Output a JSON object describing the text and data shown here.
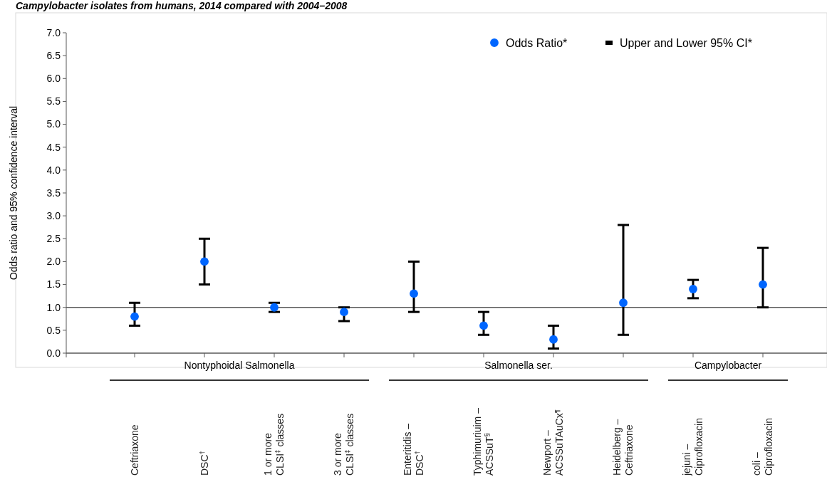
{
  "chart_data": {
    "type": "scatter",
    "title": "Campylobacter isolates from humans, 2014 compared with 2004–2008",
    "ylabel": "Odds ratio and 95% confidence interval",
    "categories": [
      "Ceftriaxone",
      "DSC$^{†}$",
      "1 or more\nCLSI$^{‡}$ classes",
      "3 or more\nCLSI$^{‡}$ classes",
      "Enteritidis –\nDSC$^{†}$",
      "Typhimuriuim –\nACSSuT$^{§}$",
      "Newport –\nACSSuTAuCx$^{¶}$",
      "Heidelberg –\nCeftriaxone",
      "jejuni –\nCiprofloxacin",
      "coli –\nCiprofloxacin"
    ],
    "series": [
      {
        "name": "Odds Ratio*",
        "color": "#0066ff",
        "values": [
          0.8,
          2.0,
          1.0,
          0.9,
          1.3,
          0.6,
          0.3,
          1.1,
          1.4,
          1.5
        ],
        "errors": [
          [
            0.6,
            1.1
          ],
          [
            1.5,
            2.5
          ],
          [
            0.9,
            1.1
          ],
          [
            0.7,
            1.0
          ],
          [
            0.9,
            2.0
          ],
          [
            0.4,
            0.9
          ],
          [
            0.1,
            0.6
          ],
          [
            0.4,
            2.8
          ],
          [
            1.2,
            1.6
          ],
          [
            1.0,
            2.3
          ]
        ]
      }
    ],
    "ylim": [
      0,
      7
    ],
    "yticks": [
      {
        "value": 0,
        "label": "0.0"
      },
      {
        "value": 0.5,
        "label": "0.5"
      },
      {
        "value": 1,
        "label": "1.0"
      },
      {
        "value": 1.5,
        "label": "1.5"
      },
      {
        "value": 2,
        "label": "2.0"
      },
      {
        "value": 2.5,
        "label": "2.5"
      },
      {
        "value": 3,
        "label": "3.0"
      },
      {
        "value": 3.5,
        "label": "3.5"
      },
      {
        "value": 4,
        "label": "4.0"
      },
      {
        "value": 4.5,
        "label": "4.5"
      },
      {
        "value": 5,
        "label": "5.0"
      },
      {
        "value": 5.5,
        "label": "5.5"
      },
      {
        "value": 6,
        "label": "6.0"
      },
      {
        "value": 6.5,
        "label": "6.5"
      },
      {
        "value": 7,
        "label": "7.0"
      }
    ],
    "ref_lines": [
      {
        "axis": "y",
        "value": 1,
        "color": "#595959"
      }
    ],
    "annotations": [
      "Upper and Lower 95% CI*",
      "Nontyphoidal Salmonella",
      "Salmonella ser.",
      "Campylobacter"
    ],
    "legend": "top right",
    "marker": "circle",
    "grid": false
  }
}
